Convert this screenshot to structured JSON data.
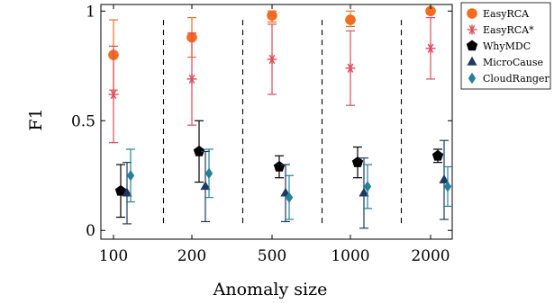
{
  "chart_data": {
    "type": "scatter",
    "categories": [
      "100",
      "200",
      "500",
      "1000",
      "2000"
    ],
    "xlabel": "Anomaly size",
    "ylabel": "F1",
    "yticks": [
      "0",
      "0.5",
      "1"
    ],
    "ylim": [
      -0.04,
      1.03
    ],
    "grid": false,
    "separators": "dashed vertical lines between groups",
    "legend_position": "top-right, outside plot",
    "series": [
      {
        "name": "EasyRCA",
        "marker": "circle",
        "color": "#f26d21",
        "values": [
          0.8,
          0.88,
          0.98,
          0.96,
          1.0
        ],
        "err_low": [
          0.64,
          0.79,
          0.95,
          0.93,
          1.0
        ],
        "err_high": [
          0.96,
          0.97,
          1.0,
          1.0,
          1.0
        ]
      },
      {
        "name": "EasyRCA*",
        "marker": "asterisk",
        "color": "#dd4b5b",
        "values": [
          0.62,
          0.69,
          0.78,
          0.74,
          0.83
        ],
        "err_low": [
          0.4,
          0.48,
          0.62,
          0.57,
          0.69
        ],
        "err_high": [
          0.84,
          0.9,
          0.94,
          0.91,
          0.97
        ]
      },
      {
        "name": "WhyMDC",
        "marker": "pentagon",
        "color": "#000000",
        "values": [
          0.18,
          0.36,
          0.29,
          0.31,
          0.34
        ],
        "err_low": [
          0.06,
          0.22,
          0.24,
          0.24,
          0.31
        ],
        "err_high": [
          0.3,
          0.5,
          0.34,
          0.38,
          0.37
        ]
      },
      {
        "name": "MicroCause",
        "marker": "triangle",
        "color": "#1f3a5f",
        "values": [
          0.17,
          0.2,
          0.17,
          0.17,
          0.23
        ],
        "err_low": [
          0.03,
          0.04,
          0.04,
          0.01,
          0.05
        ],
        "err_high": [
          0.31,
          0.36,
          0.3,
          0.33,
          0.41
        ]
      },
      {
        "name": "CloudRanger",
        "marker": "diamond",
        "color": "#23819c",
        "values": [
          0.25,
          0.26,
          0.15,
          0.2,
          0.2
        ],
        "err_low": [
          0.13,
          0.15,
          0.05,
          0.1,
          0.11
        ],
        "err_high": [
          0.37,
          0.37,
          0.25,
          0.3,
          0.29
        ]
      }
    ]
  }
}
